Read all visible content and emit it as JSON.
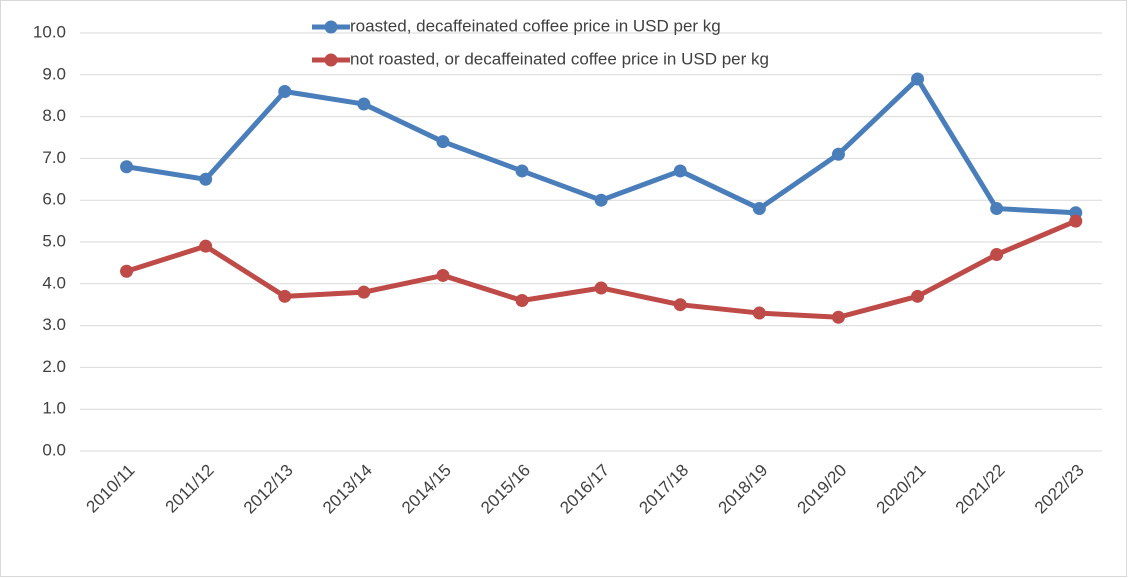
{
  "chart_data": {
    "type": "line",
    "categories": [
      "2010/11",
      "2011/12",
      "2012/13",
      "2013/14",
      "2014/15",
      "2015/16",
      "2016/17",
      "2017/18",
      "2018/19",
      "2019/20",
      "2020/21",
      "2021/22",
      "2022/23"
    ],
    "series": [
      {
        "name": "roasted, decaffeinated coffee price in  USD per kg",
        "color": "#4a7ebb",
        "values": [
          6.8,
          6.5,
          8.6,
          8.3,
          7.4,
          6.7,
          6.0,
          6.7,
          5.8,
          7.1,
          8.9,
          5.8,
          5.7
        ]
      },
      {
        "name": "not roasted, or decaffeinated coffee price in  USD per kg",
        "color": "#be4b48",
        "values": [
          4.3,
          4.9,
          3.7,
          3.8,
          4.2,
          3.6,
          3.9,
          3.5,
          3.3,
          3.2,
          3.7,
          4.7,
          5.5
        ]
      }
    ],
    "ylim": [
      0,
      10
    ],
    "yticks": [
      {
        "value": 0,
        "label": "0.0"
      },
      {
        "value": 1,
        "label": "1.0"
      },
      {
        "value": 2,
        "label": "2.0"
      },
      {
        "value": 3,
        "label": "3.0"
      },
      {
        "value": 4,
        "label": "4.0"
      },
      {
        "value": 5,
        "label": "5.0"
      },
      {
        "value": 6,
        "label": "6.0"
      },
      {
        "value": 7,
        "label": "7.0"
      },
      {
        "value": 8,
        "label": "8.0"
      },
      {
        "value": 9,
        "label": "9.0"
      },
      {
        "value": 10,
        "label": "10.0"
      }
    ],
    "grid": true,
    "legend": "top"
  }
}
